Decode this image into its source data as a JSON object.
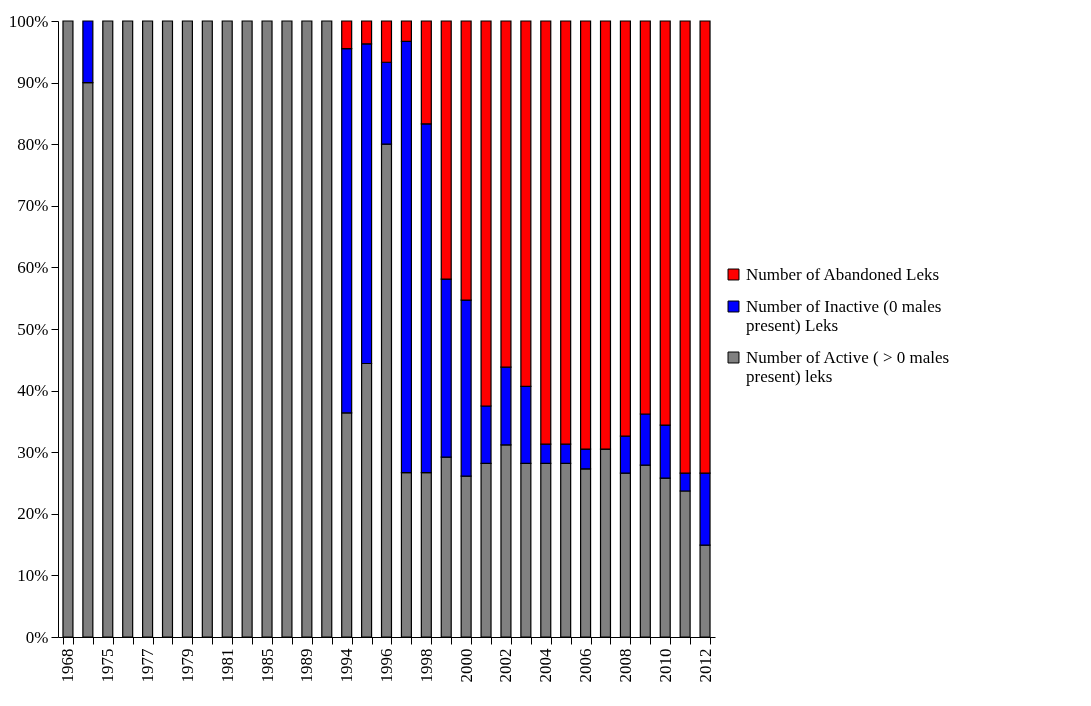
{
  "chart_data": {
    "type": "bar",
    "stacked": true,
    "legend": "right",
    "categories": [
      "1968",
      null,
      "1975",
      null,
      "1977",
      null,
      "1979",
      null,
      "1981",
      null,
      "1985",
      null,
      "1989",
      null,
      "1994",
      null,
      "1996",
      null,
      "1998",
      null,
      "2000",
      null,
      "2002",
      null,
      "2004",
      null,
      "2006",
      null,
      "2008",
      null,
      "2010",
      null,
      "2012"
    ],
    "series": [
      {
        "name": "Number of Active ( > 0 males present) leks",
        "color": "#808080",
        "values": [
          100,
          90,
          100,
          100,
          100,
          100,
          100,
          100,
          100,
          100,
          100,
          100,
          100,
          100,
          36.4,
          44.4,
          80,
          26.7,
          26.7,
          29.2,
          26.1,
          28.2,
          31.2,
          28.2,
          28.2,
          28.2,
          27.3,
          30.5,
          26.6,
          27.9,
          25.8,
          23.7,
          14.9
        ]
      },
      {
        "name": "Number of Inactive (0 males present) Leks",
        "color": "#0000ff",
        "values": [
          0,
          10,
          0,
          0,
          0,
          0,
          0,
          0,
          0,
          0,
          0,
          0,
          0,
          0,
          59.1,
          51.9,
          13.3,
          70,
          56.6,
          28.9,
          28.6,
          9.3,
          12.6,
          12.5,
          3.1,
          3.1,
          3.2,
          0,
          6,
          8.3,
          8.6,
          2.9,
          11.7
        ]
      },
      {
        "name": "Number of Abandoned Leks",
        "color": "#ff0000",
        "values": [
          0,
          0,
          0,
          0,
          0,
          0,
          0,
          0,
          0,
          0,
          0,
          0,
          0,
          0,
          4.5,
          3.7,
          6.7,
          3.3,
          16.7,
          41.9,
          45.3,
          62.5,
          56.2,
          59.3,
          68.7,
          68.7,
          69.5,
          69.5,
          67.4,
          63.8,
          65.6,
          73.4,
          73.4
        ]
      }
    ],
    "ylim": [
      0,
      100
    ],
    "yticks": [
      {
        "value": 0,
        "label": "0%"
      },
      {
        "value": 10,
        "label": "10%"
      },
      {
        "value": 20,
        "label": "20%"
      },
      {
        "value": 30,
        "label": "30%"
      },
      {
        "value": 40,
        "label": "40%"
      },
      {
        "value": 50,
        "label": "50%"
      },
      {
        "value": 60,
        "label": "60%"
      },
      {
        "value": 70,
        "label": "70%"
      },
      {
        "value": 80,
        "label": "80%"
      },
      {
        "value": 90,
        "label": "90%"
      },
      {
        "value": 100,
        "label": "100%"
      }
    ]
  }
}
